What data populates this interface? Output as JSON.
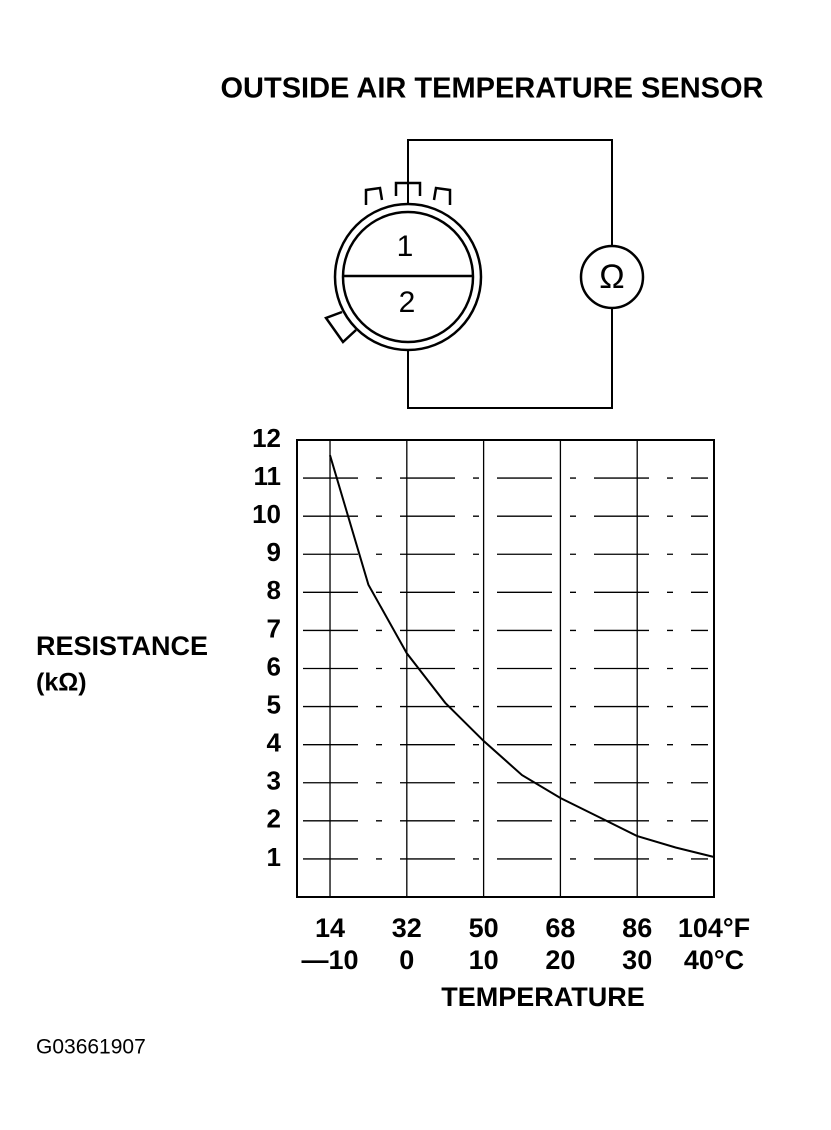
{
  "title": "OUTSIDE AIR TEMPERATURE SENSOR",
  "connector": {
    "pin_labels": [
      "1",
      "2"
    ],
    "meter_symbol": "Ω"
  },
  "figure_id": "G03661907",
  "chart_data": {
    "type": "line",
    "ylabel_lines": [
      "RESISTANCE",
      "(kΩ)"
    ],
    "xlabel": "TEMPERATURE",
    "x": [
      -10,
      -5,
      0,
      5,
      10,
      15,
      20,
      25,
      30,
      35,
      40
    ],
    "series": [
      {
        "color": "#000000",
        "values": [
          11.6,
          8.2,
          6.4,
          5.1,
          4.1,
          3.2,
          2.6,
          2.1,
          1.6,
          1.3,
          1.05
        ]
      }
    ],
    "xlim": [
      -14.3,
      40
    ],
    "xticks": [
      {
        "value": -10,
        "label": "—10"
      },
      0,
      10,
      20,
      30,
      {
        "value": 40,
        "label": "40°C"
      }
    ],
    "x2lim": [
      6.26,
      104
    ],
    "x2ticks": [
      14,
      32,
      50,
      68,
      86,
      {
        "value": 104,
        "label": "104°F"
      }
    ],
    "ylim": [
      0,
      12
    ],
    "yticks": [
      1,
      2,
      3,
      4,
      5,
      6,
      7,
      8,
      9,
      10,
      11,
      12
    ],
    "grid": true
  }
}
